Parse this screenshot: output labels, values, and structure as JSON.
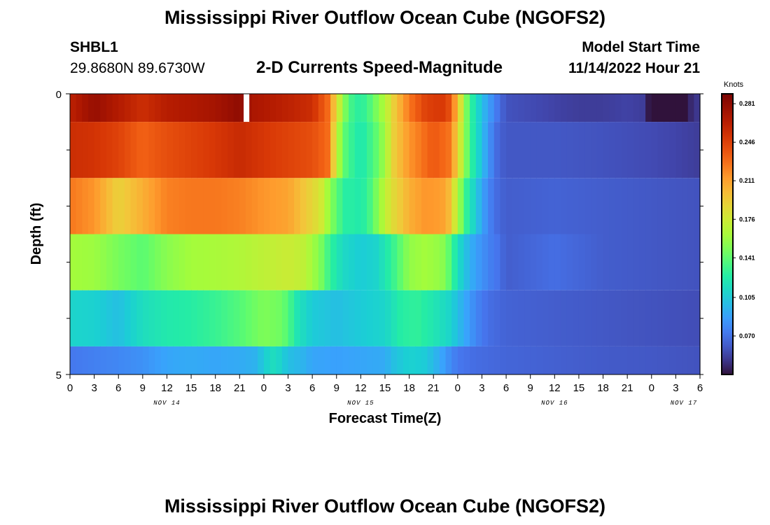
{
  "header": {
    "title": "Mississippi River Outflow Ocean Cube (NGOFS2)",
    "station_id": "SHBL1",
    "station_coords": "29.8680N  89.6730W",
    "subtitle": "2-D Currents Speed-Magnitude",
    "model_start_label": "Model Start Time",
    "model_start_value": "11/14/2022 Hour 21"
  },
  "footer": {
    "title": "Mississippi River Outflow Ocean Cube (NGOFS2)"
  },
  "chart_data": {
    "type": "heatmap",
    "xlabel": "Forecast Time(Z)",
    "ylabel": "Depth (ft)",
    "x_unit": "hours from Nov 14 00Z",
    "xlim": [
      0,
      78
    ],
    "ylim": [
      0,
      5
    ],
    "x_tick_values": [
      0,
      3,
      6,
      9,
      12,
      15,
      18,
      21,
      24,
      27,
      30,
      33,
      36,
      39,
      42,
      45,
      48,
      51,
      54,
      57,
      60,
      63,
      66,
      69,
      72,
      75,
      78
    ],
    "x_tick_labels": [
      "0",
      "3",
      "6",
      "9",
      "12",
      "15",
      "18",
      "21",
      "0",
      "3",
      "6",
      "9",
      "12",
      "15",
      "18",
      "21",
      "0",
      "3",
      "6",
      "9",
      "12",
      "15",
      "18",
      "21",
      "0",
      "3",
      "6"
    ],
    "y_tick_values": [
      0,
      5
    ],
    "y_tick_labels": [
      "0",
      "5"
    ],
    "y_minor_ticks": [
      1,
      2,
      3,
      4
    ],
    "day_labels": [
      {
        "text": "NOV 14",
        "x": 12
      },
      {
        "text": "NOV 15",
        "x": 36
      },
      {
        "text": "NOV 16",
        "x": 60
      },
      {
        "text": "NOV 17",
        "x": 76
      }
    ],
    "colorbar": {
      "unit": "Knots",
      "min": 0.035,
      "max": 0.29,
      "tick_values": [
        0.07,
        0.105,
        0.141,
        0.176,
        0.211,
        0.246,
        0.281
      ],
      "tick_labels": [
        "0.070",
        "0.105",
        "0.141",
        "0.176",
        "0.211",
        "0.246",
        "0.281"
      ]
    },
    "layers": [
      {
        "depth_top": 0,
        "depth_bottom": 0.5,
        "missing": [
          [
            21.5,
            22.2
          ]
        ],
        "knots": [
          [
            0,
            0.262
          ],
          [
            3,
            0.278
          ],
          [
            6,
            0.266
          ],
          [
            9,
            0.255
          ],
          [
            12,
            0.265
          ],
          [
            15,
            0.268
          ],
          [
            18,
            0.272
          ],
          [
            21,
            0.281
          ],
          [
            22.5,
            0.27
          ],
          [
            27,
            0.262
          ],
          [
            30,
            0.255
          ],
          [
            32,
            0.228
          ],
          [
            33,
            0.185
          ],
          [
            34,
            0.15
          ],
          [
            35,
            0.13
          ],
          [
            36,
            0.125
          ],
          [
            37,
            0.135
          ],
          [
            38,
            0.15
          ],
          [
            39,
            0.165
          ],
          [
            40,
            0.19
          ],
          [
            42,
            0.225
          ],
          [
            44,
            0.245
          ],
          [
            46,
            0.25
          ],
          [
            47,
            0.24
          ],
          [
            48,
            0.2
          ],
          [
            49,
            0.15
          ],
          [
            50,
            0.12
          ],
          [
            51,
            0.1
          ],
          [
            52,
            0.085
          ],
          [
            53,
            0.07
          ],
          [
            54,
            0.058
          ],
          [
            57,
            0.055
          ],
          [
            60,
            0.052
          ],
          [
            63,
            0.05
          ],
          [
            66,
            0.05
          ],
          [
            69,
            0.052
          ],
          [
            71,
            0.05
          ],
          [
            72,
            0.03
          ],
          [
            74,
            0.02
          ],
          [
            76,
            0.03
          ],
          [
            77,
            0.045
          ],
          [
            78,
            0.05
          ]
        ]
      },
      {
        "depth_top": 0.5,
        "depth_bottom": 1.5,
        "knots": [
          [
            0,
            0.255
          ],
          [
            3,
            0.252
          ],
          [
            6,
            0.245
          ],
          [
            9,
            0.232
          ],
          [
            12,
            0.24
          ],
          [
            15,
            0.245
          ],
          [
            18,
            0.25
          ],
          [
            21,
            0.257
          ],
          [
            24,
            0.25
          ],
          [
            27,
            0.245
          ],
          [
            30,
            0.24
          ],
          [
            32,
            0.228
          ],
          [
            33,
            0.17
          ],
          [
            34,
            0.14
          ],
          [
            35,
            0.128
          ],
          [
            36,
            0.12
          ],
          [
            37,
            0.13
          ],
          [
            38,
            0.142
          ],
          [
            39,
            0.16
          ],
          [
            40,
            0.19
          ],
          [
            42,
            0.215
          ],
          [
            45,
            0.236
          ],
          [
            47,
            0.226
          ],
          [
            48,
            0.19
          ],
          [
            49,
            0.15
          ],
          [
            50,
            0.12
          ],
          [
            51,
            0.1
          ],
          [
            52,
            0.08
          ],
          [
            53,
            0.065
          ],
          [
            54,
            0.06
          ],
          [
            60,
            0.06
          ],
          [
            66,
            0.058
          ],
          [
            72,
            0.055
          ],
          [
            78,
            0.05
          ]
        ]
      },
      {
        "depth_top": 1.5,
        "depth_bottom": 2.5,
        "knots": [
          [
            0,
            0.225
          ],
          [
            3,
            0.215
          ],
          [
            6,
            0.19
          ],
          [
            9,
            0.205
          ],
          [
            12,
            0.222
          ],
          [
            15,
            0.225
          ],
          [
            18,
            0.225
          ],
          [
            21,
            0.222
          ],
          [
            24,
            0.215
          ],
          [
            27,
            0.21
          ],
          [
            29,
            0.195
          ],
          [
            31,
            0.18
          ],
          [
            32,
            0.158
          ],
          [
            33,
            0.14
          ],
          [
            34,
            0.125
          ],
          [
            35,
            0.125
          ],
          [
            36,
            0.122
          ],
          [
            37,
            0.132
          ],
          [
            38,
            0.15
          ],
          [
            39,
            0.17
          ],
          [
            40,
            0.185
          ],
          [
            42,
            0.205
          ],
          [
            44,
            0.215
          ],
          [
            46,
            0.212
          ],
          [
            47,
            0.2
          ],
          [
            48,
            0.165
          ],
          [
            49,
            0.13
          ],
          [
            50,
            0.11
          ],
          [
            51,
            0.09
          ],
          [
            52,
            0.075
          ],
          [
            53,
            0.066
          ],
          [
            54,
            0.062
          ],
          [
            60,
            0.064
          ],
          [
            66,
            0.062
          ],
          [
            72,
            0.06
          ],
          [
            78,
            0.058
          ]
        ]
      },
      {
        "depth_top": 2.5,
        "depth_bottom": 3.5,
        "knots": [
          [
            0,
            0.16
          ],
          [
            3,
            0.158
          ],
          [
            6,
            0.148
          ],
          [
            9,
            0.14
          ],
          [
            12,
            0.153
          ],
          [
            15,
            0.16
          ],
          [
            18,
            0.162
          ],
          [
            21,
            0.165
          ],
          [
            24,
            0.17
          ],
          [
            27,
            0.175
          ],
          [
            29,
            0.17
          ],
          [
            31,
            0.15
          ],
          [
            32,
            0.132
          ],
          [
            33,
            0.12
          ],
          [
            34,
            0.112
          ],
          [
            36,
            0.105
          ],
          [
            38,
            0.11
          ],
          [
            39,
            0.12
          ],
          [
            40,
            0.13
          ],
          [
            42,
            0.155
          ],
          [
            44,
            0.16
          ],
          [
            46,
            0.155
          ],
          [
            47,
            0.14
          ],
          [
            48,
            0.115
          ],
          [
            49,
            0.1
          ],
          [
            50,
            0.09
          ],
          [
            51,
            0.082
          ],
          [
            52,
            0.075
          ],
          [
            53,
            0.07
          ],
          [
            54,
            0.062
          ],
          [
            57,
            0.065
          ],
          [
            60,
            0.068
          ],
          [
            63,
            0.065
          ],
          [
            66,
            0.062
          ],
          [
            72,
            0.06
          ],
          [
            78,
            0.058
          ]
        ]
      },
      {
        "depth_top": 3.5,
        "depth_bottom": 4.5,
        "knots": [
          [
            0,
            0.11
          ],
          [
            3,
            0.108
          ],
          [
            6,
            0.1
          ],
          [
            9,
            0.115
          ],
          [
            12,
            0.122
          ],
          [
            15,
            0.125
          ],
          [
            18,
            0.13
          ],
          [
            21,
            0.138
          ],
          [
            24,
            0.15
          ],
          [
            26,
            0.146
          ],
          [
            27,
            0.138
          ],
          [
            28,
            0.12
          ],
          [
            30,
            0.105
          ],
          [
            33,
            0.1
          ],
          [
            36,
            0.105
          ],
          [
            39,
            0.11
          ],
          [
            41,
            0.125
          ],
          [
            43,
            0.128
          ],
          [
            45,
            0.12
          ],
          [
            47,
            0.11
          ],
          [
            48,
            0.1
          ],
          [
            49,
            0.09
          ],
          [
            50,
            0.08
          ],
          [
            51,
            0.072
          ],
          [
            52,
            0.068
          ],
          [
            54,
            0.064
          ],
          [
            60,
            0.062
          ],
          [
            66,
            0.06
          ],
          [
            72,
            0.058
          ],
          [
            78,
            0.056
          ]
        ]
      },
      {
        "depth_top": 4.5,
        "depth_bottom": 5,
        "knots": [
          [
            0,
            0.072
          ],
          [
            3,
            0.075
          ],
          [
            6,
            0.078
          ],
          [
            9,
            0.082
          ],
          [
            12,
            0.09
          ],
          [
            15,
            0.092
          ],
          [
            18,
            0.09
          ],
          [
            21,
            0.092
          ],
          [
            23,
            0.095
          ],
          [
            24,
            0.105
          ],
          [
            25,
            0.115
          ],
          [
            26,
            0.11
          ],
          [
            27,
            0.1
          ],
          [
            29,
            0.095
          ],
          [
            30,
            0.09
          ],
          [
            33,
            0.088
          ],
          [
            36,
            0.09
          ],
          [
            39,
            0.092
          ],
          [
            40,
            0.1
          ],
          [
            42,
            0.108
          ],
          [
            44,
            0.105
          ],
          [
            45,
            0.098
          ],
          [
            46,
            0.09
          ],
          [
            47,
            0.08
          ],
          [
            48,
            0.072
          ],
          [
            50,
            0.068
          ],
          [
            54,
            0.065
          ],
          [
            60,
            0.063
          ],
          [
            66,
            0.061
          ],
          [
            72,
            0.06
          ],
          [
            78,
            0.058
          ]
        ]
      }
    ]
  }
}
